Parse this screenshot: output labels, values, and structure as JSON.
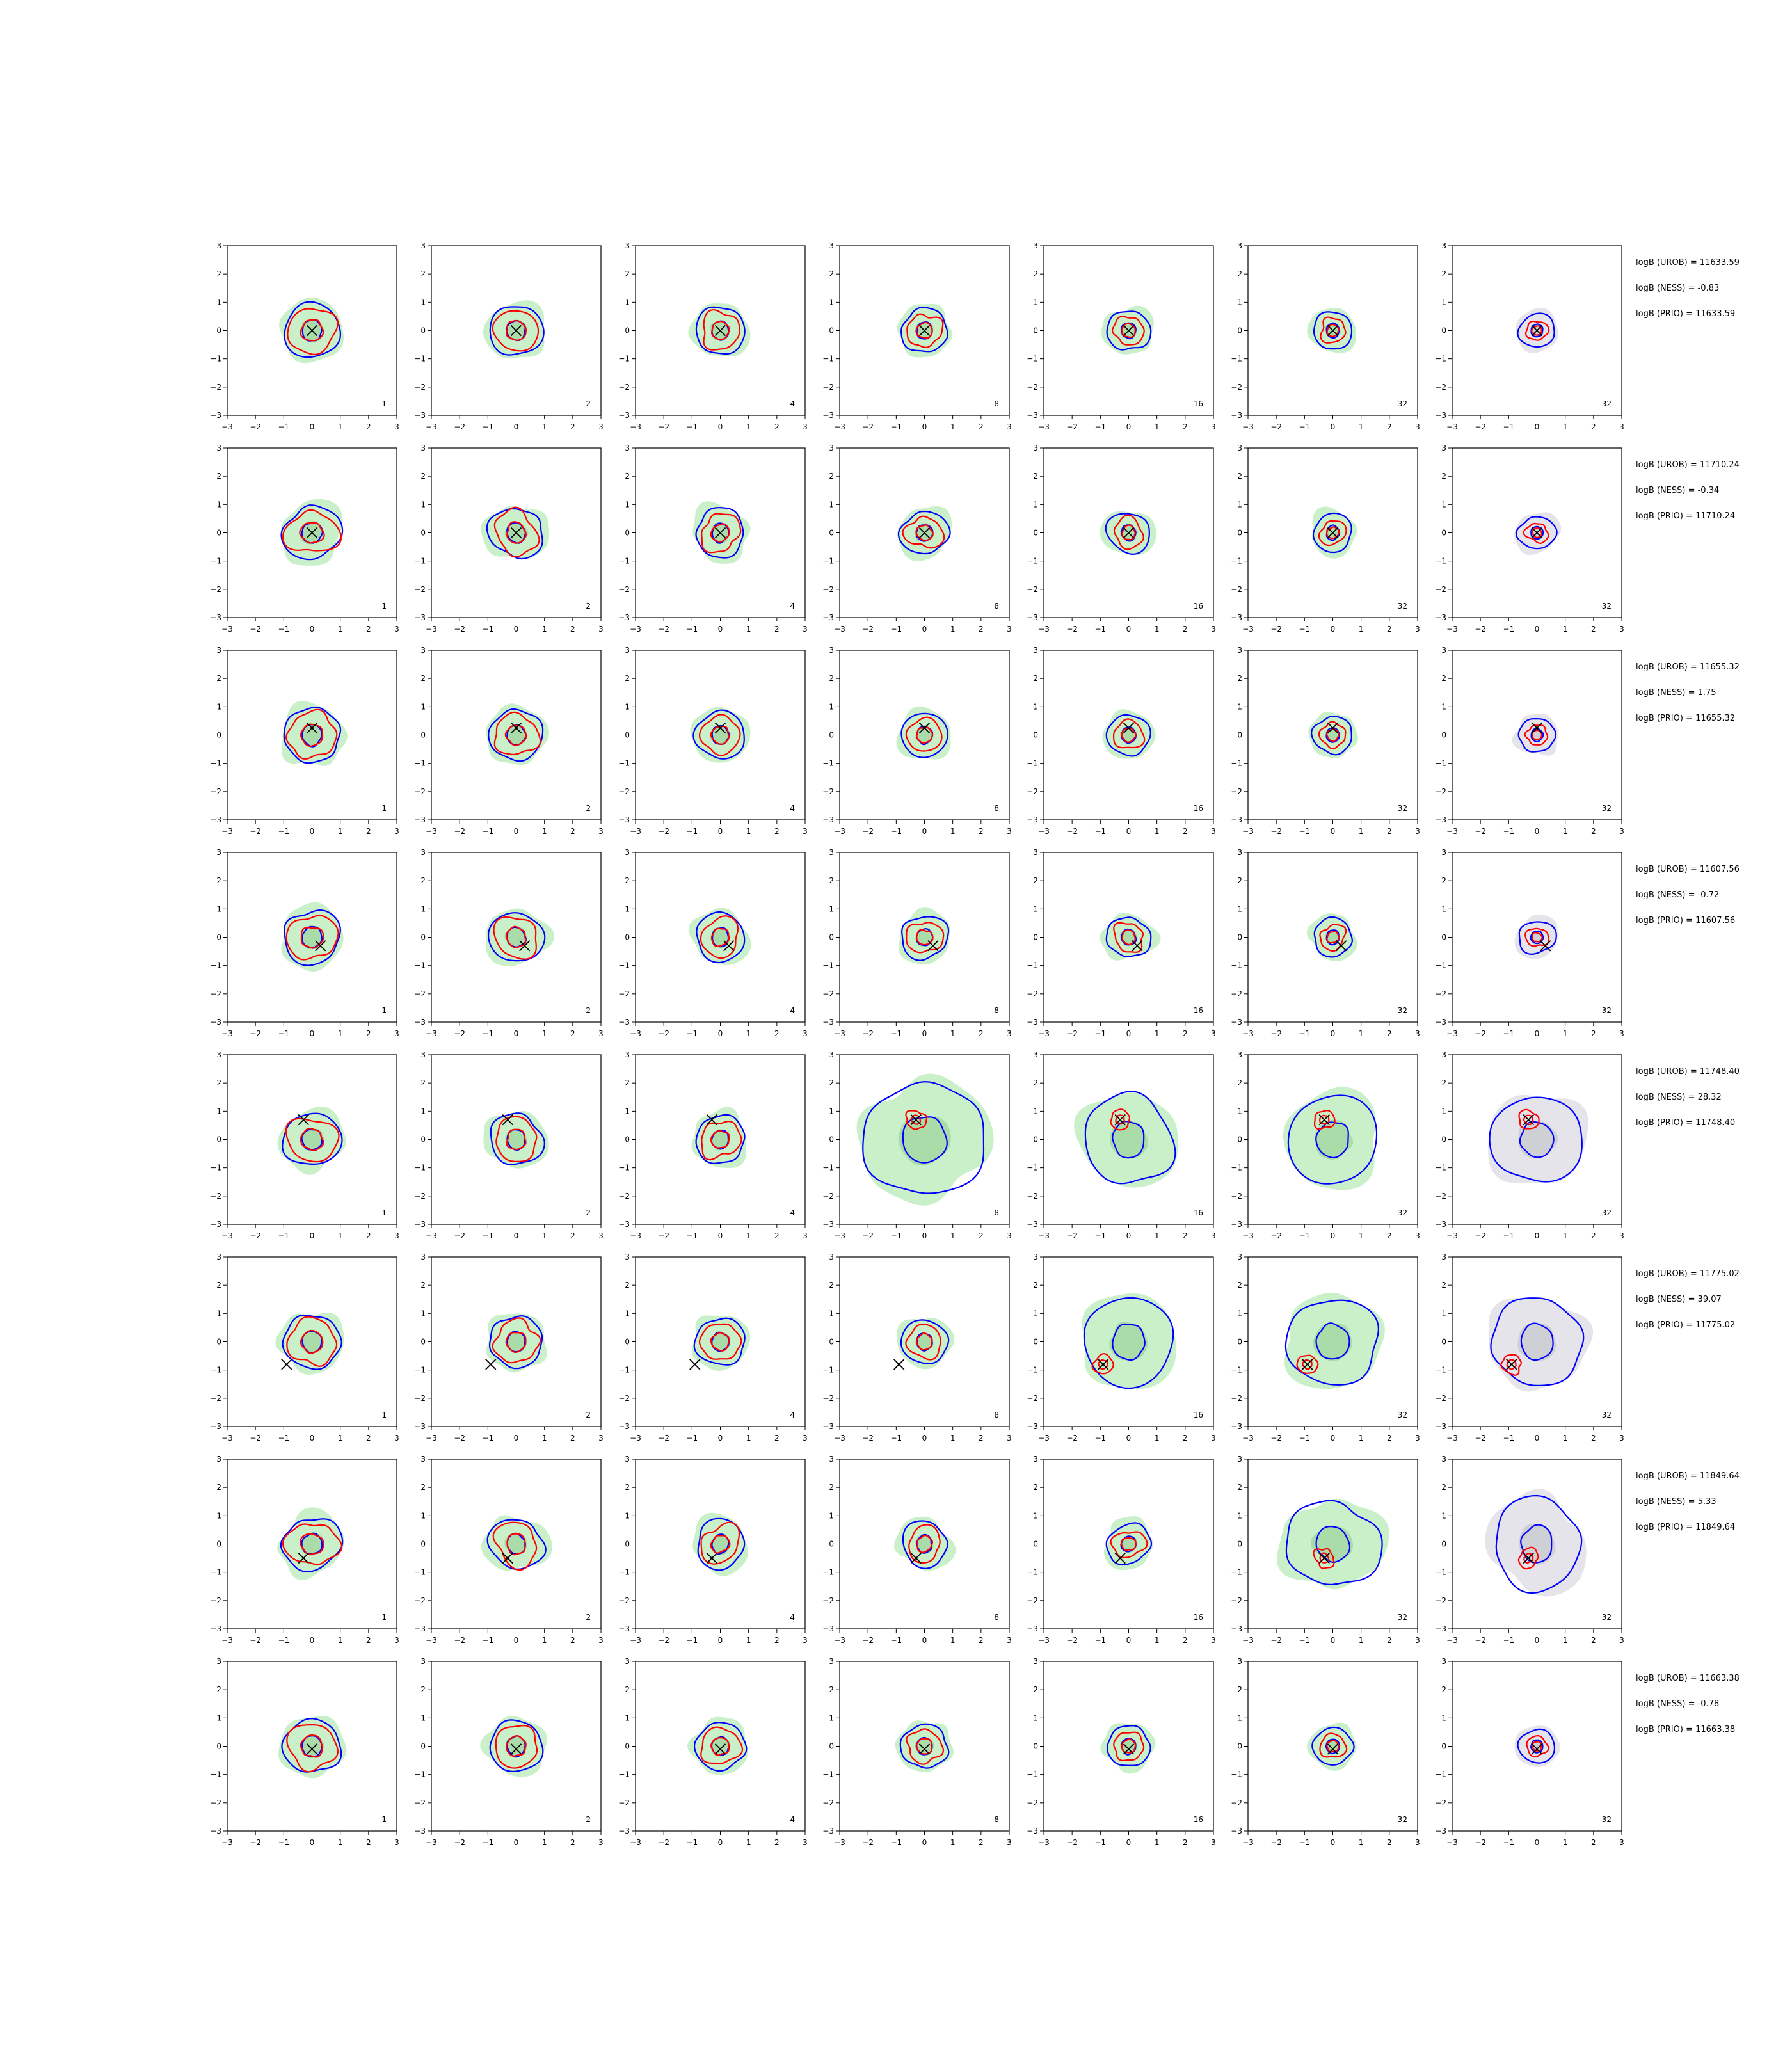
{
  "chart_data": {
    "type": "contour-grid",
    "xlim": [
      -3,
      3
    ],
    "ylim": [
      -3,
      3
    ],
    "ticks": [
      -3,
      -2,
      -1,
      0,
      1,
      2,
      3
    ],
    "column_counts": [
      "1",
      "2",
      "4",
      "8",
      "16",
      "32",
      "32"
    ],
    "colors": {
      "blue_contour": "#0000ff",
      "red_contour": "#ff0000",
      "green_fill": "#c9f0c9",
      "green_inner": "#a9dca9",
      "gray_fill": "#e4e4ea",
      "gray_inner": "#cfcfd6"
    },
    "rows": [
      {
        "marker": [
          0.0,
          0.0
        ],
        "annotations": [
          "logB (UROB) = 11633.59",
          "logB (NESS) = -0.83",
          "logB (PRIO) = 11633.59"
        ]
      },
      {
        "marker": [
          0.0,
          0.0
        ],
        "annotations": [
          "logB (UROB) = 11710.24",
          "logB (NESS) = -0.34",
          "logB (PRIO) = 11710.24"
        ]
      },
      {
        "marker": [
          0.0,
          0.25
        ],
        "annotations": [
          "logB (UROB) = 11655.32",
          "logB (NESS) = 1.75",
          "logB (PRIO) = 11655.32"
        ]
      },
      {
        "marker": [
          0.3,
          -0.3
        ],
        "annotations": [
          "logB (UROB) = 11607.56",
          "logB (NESS) = -0.72",
          "logB (PRIO) = 11607.56"
        ]
      },
      {
        "marker": [
          -0.3,
          0.7
        ],
        "annotations": [
          "logB (UROB) = 11748.40",
          "logB (NESS) = 28.32",
          "logB (PRIO) = 11748.40"
        ]
      },
      {
        "marker": [
          -0.9,
          -0.8
        ],
        "annotations": [
          "logB (UROB) = 11775.02",
          "logB (NESS) = 39.07",
          "logB (PRIO) = 11775.02"
        ]
      },
      {
        "marker": [
          -0.3,
          -0.5
        ],
        "annotations": [
          "logB (UROB) = 11849.64",
          "logB (NESS) = 5.33",
          "logB (PRIO) = 11849.64"
        ]
      },
      {
        "marker": [
          0.0,
          -0.1
        ],
        "annotations": [
          "logB (UROB) = 11663.38",
          "logB (NESS) = -0.78",
          "logB (PRIO) = 11663.38"
        ]
      }
    ]
  }
}
